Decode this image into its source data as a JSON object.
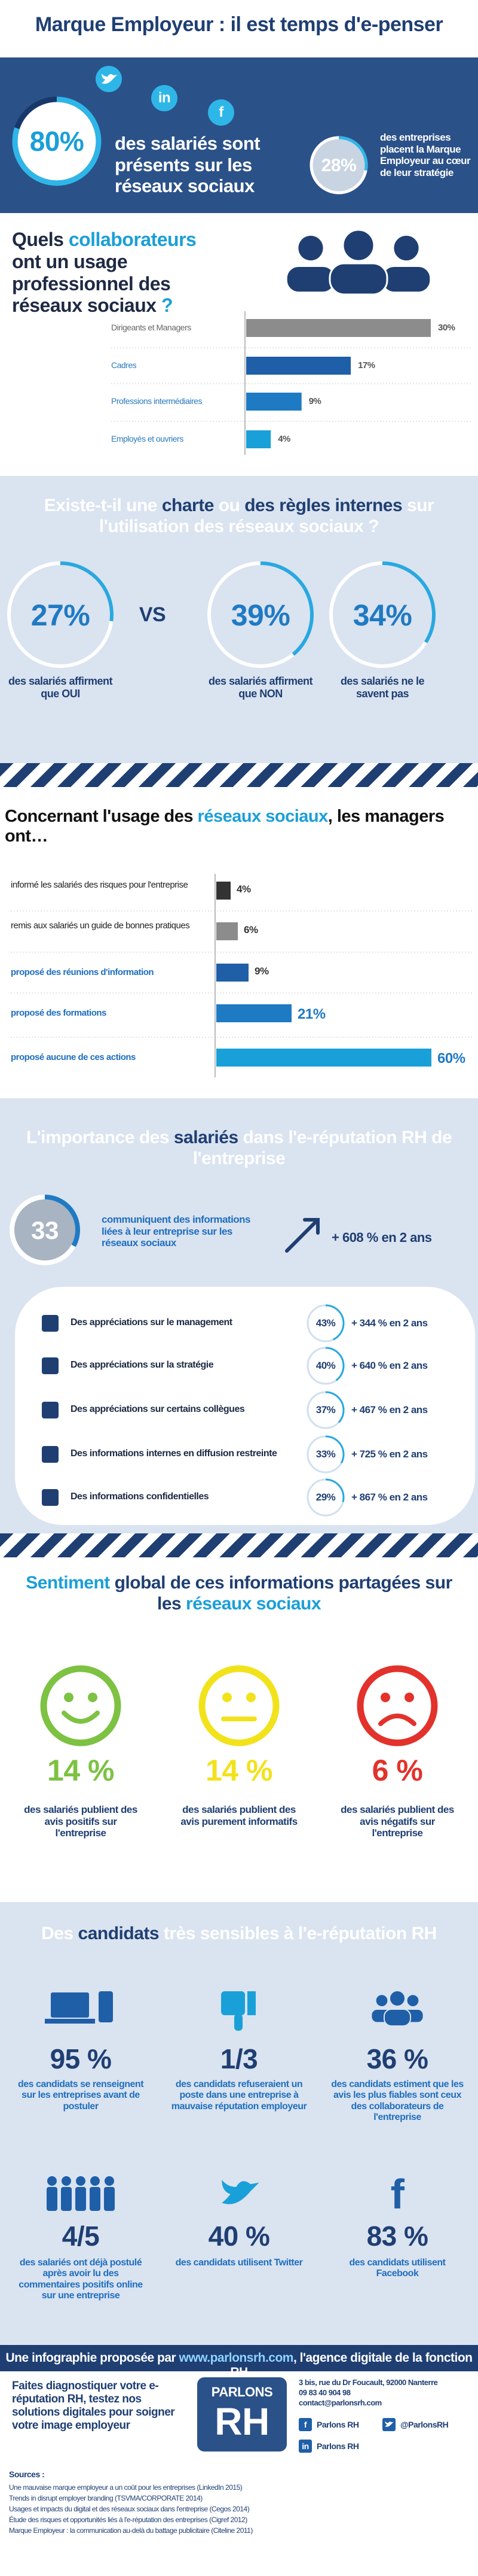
{
  "title": "Marque Employeur : il est temps d'e-penser",
  "hero": {
    "social_icons": [
      "in",
      "f"
    ],
    "stat_main": {
      "value": 80,
      "label": "80%",
      "text": "des salariés sont présents sur les réseaux sociaux"
    },
    "stat_side": {
      "value": 28,
      "label": "28%",
      "text": "des entreprises placent la Marque Employeur au cœur de leur stratégie"
    }
  },
  "usage": {
    "heading": [
      "Quels ",
      "collaborateurs",
      " ont un usage professionnel des réseaux sociaux ",
      "?"
    ],
    "bars": [
      {
        "label": "Dirigeants et Managers",
        "value": 30,
        "value_label": "30%",
        "color": "#8c8c8c"
      },
      {
        "label": "Cadres",
        "value": 17,
        "value_label": "17%",
        "color": "#1f5fa8"
      },
      {
        "label": "Professions intermédiaires",
        "value": 9,
        "value_label": "9%",
        "color": "#1f7ac4"
      },
      {
        "label": "Employés et ouvriers",
        "value": 4,
        "value_label": "4%",
        "color": "#1aa0d8"
      }
    ]
  },
  "charte": {
    "heading": [
      "Existe-t-il une ",
      "charte",
      " ou ",
      "des règles internes",
      " sur l'utilisation des réseaux sociaux ?"
    ],
    "vs": "VS",
    "stats": [
      {
        "value": 27,
        "label": "27%",
        "text": "des salariés affirment que OUI"
      },
      {
        "value": 39,
        "label": "39%",
        "text": "des salariés affirment que NON"
      },
      {
        "value": 34,
        "label": "34%",
        "text": "des salariés ne le savent pas"
      }
    ]
  },
  "managers": {
    "heading": [
      "Concernant l'usage des ",
      "réseaux sociaux",
      ", les managers ont…"
    ],
    "bars": [
      {
        "label": "informé les salariés des risques pour l'entreprise",
        "value": 4,
        "value_label": "4%",
        "color": "#333333"
      },
      {
        "label": "remis aux salariés un guide de bonnes pratiques",
        "value": 6,
        "value_label": "6%",
        "color": "#8c8c8c"
      },
      {
        "label": "proposé des réunions d'information",
        "value": 9,
        "value_label": "9%",
        "color": "#1f5fa8"
      },
      {
        "label": "proposé des formations",
        "value": 21,
        "value_label": "21%",
        "color": "#1f7ac4"
      },
      {
        "label": "proposé aucune de ces actions",
        "value": 60,
        "value_label": "60%",
        "color": "#1aa0d8"
      }
    ]
  },
  "importance": {
    "heading": [
      "L'importance des ",
      "salariés",
      " dans l'e-réputation RH de l'entreprise"
    ],
    "stat": {
      "value": 33,
      "label": "33",
      "text": "communiquent des informations liées à leur entreprise sur les réseaux sociaux"
    },
    "growth": "+ 608 % en 2 ans",
    "rows": [
      {
        "label": "Des appréciations sur le management",
        "value": 43,
        "value_label": "43%",
        "growth": "+ 344 % en 2 ans"
      },
      {
        "label": "Des appréciations sur la stratégie",
        "value": 40,
        "value_label": "40%",
        "growth": "+ 640 % en 2 ans"
      },
      {
        "label": "Des appréciations sur certains collègues",
        "value": 37,
        "value_label": "37%",
        "growth": "+ 467 % en 2 ans"
      },
      {
        "label": "Des informations internes en diffusion restreinte",
        "value": 33,
        "value_label": "33%",
        "growth": "+ 725 % en 2 ans"
      },
      {
        "label": "Des informations confidentielles",
        "value": 29,
        "value_label": "29%",
        "growth": "+ 867 % en 2 ans"
      }
    ]
  },
  "sentiment": {
    "heading": [
      "Sentiment",
      " global de ces informations partagées sur les ",
      "réseaux sociaux"
    ],
    "items": [
      {
        "value": 14,
        "label": "14 %",
        "text": "des salariés publient des avis positifs sur l'entreprise",
        "color": "#7dc242"
      },
      {
        "value": 14,
        "label": "14 %",
        "text": "des salariés publient des avis purement informatifs",
        "color": "#f2e21b"
      },
      {
        "value": 6,
        "label": "6 %",
        "text": "des salariés publient des avis négatifs sur l'entreprise",
        "color": "#e2322b"
      }
    ]
  },
  "candidats": {
    "heading": [
      "Des ",
      "candidats",
      " très sensibles à l'e-réputation RH"
    ],
    "items": [
      {
        "stat": "95 %",
        "text": "des candidats se renseignent sur les entreprises avant de postuler"
      },
      {
        "stat": "1/3",
        "text": "des candidats refuseraient un poste dans une entreprise à mauvaise réputation employeur"
      },
      {
        "stat": "36 %",
        "text": "des candidats estiment que les avis les plus fiables sont ceux des collaborateurs de l'entreprise"
      },
      {
        "stat": "4/5",
        "text": "des salariés ont déjà postulé après avoir lu des commentaires positifs online sur une entreprise"
      },
      {
        "stat": "40 %",
        "text": "des candidats utilisent Twitter"
      },
      {
        "stat": "83 %",
        "text": "des candidats utilisent Facebook",
        "icon": "f"
      }
    ]
  },
  "footer": {
    "banner": [
      "Une infographie proposée par ",
      "www.parlonsrh.com",
      ", l'agence digitale de la fonction RH"
    ],
    "cta": "Faites diagnostiquer votre e-réputation RH, testez nos solutions digitales pour soigner votre image employeur",
    "logo": [
      "PARLONS",
      "RH"
    ],
    "address": [
      "3 bis, rue du Dr Foucault, 92000 Nanterre",
      "09 83 40 904 98",
      "contact@parlonsrh.com"
    ],
    "social": [
      {
        "icon": "f",
        "label": "Parlons RH"
      },
      {
        "label": "@ParlonsRH"
      },
      {
        "icon": "in",
        "label": "Parlons RH"
      }
    ]
  },
  "sources": {
    "title": "Sources :",
    "items": [
      "Une mauvaise marque employeur a un coût pour les entreprises (LinkedIn 2015)",
      "Trends in disrupt employer branding (TSVMA/CORPORATE 2014)",
      "Usages et impacts du digital et des réseaux sociaux dans l'entreprise (Cegos 2014)",
      "Étude des risques et opportunités liés à l'e-réputation des entreprises (Cigref 2012)",
      "Marque Employeur : la communication au-delà du battage publicitaire (Citeline 2011)"
    ]
  }
}
